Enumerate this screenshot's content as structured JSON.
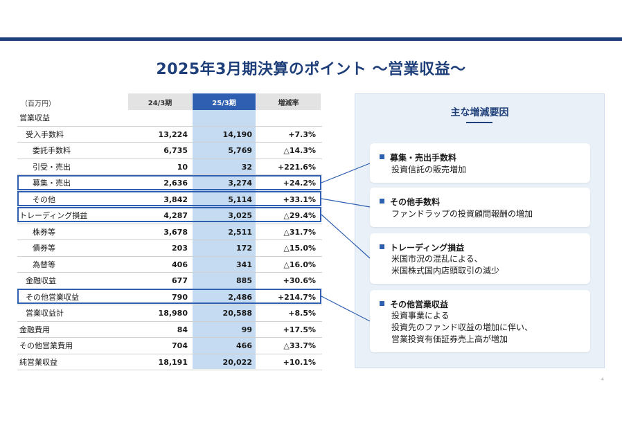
{
  "title": "2025年3月期決算のポイント ～営業収益～",
  "unit": "（百万円）",
  "columns": [
    "24/3期",
    "25/3期",
    "増減率"
  ],
  "rows": [
    {
      "label": "営業収益",
      "v1": "",
      "v2": "",
      "v3": ""
    },
    {
      "label": "受入手数料",
      "v1": "13,224",
      "v2": "14,190",
      "v3": "+7.3%"
    },
    {
      "label": "委託手数料",
      "v1": "6,735",
      "v2": "5,769",
      "v3": "△14.3%"
    },
    {
      "label": "引受・売出",
      "v1": "10",
      "v2": "32",
      "v3": "+221.6%"
    },
    {
      "label": "募集・売出",
      "v1": "2,636",
      "v2": "3,274",
      "v3": "+24.2%"
    },
    {
      "label": "その他",
      "v1": "3,842",
      "v2": "5,114",
      "v3": "+33.1%"
    },
    {
      "label": "トレーディング損益",
      "v1": "4,287",
      "v2": "3,025",
      "v3": "△29.4%"
    },
    {
      "label": "株券等",
      "v1": "3,678",
      "v2": "2,511",
      "v3": "△31.7%"
    },
    {
      "label": "債券等",
      "v1": "203",
      "v2": "172",
      "v3": "△15.0%"
    },
    {
      "label": "為替等",
      "v1": "406",
      "v2": "341",
      "v3": "△16.0%"
    },
    {
      "label": "金融収益",
      "v1": "677",
      "v2": "885",
      "v3": "+30.6%"
    },
    {
      "label": "その他営業収益",
      "v1": "790",
      "v2": "2,486",
      "v3": "+214.7%"
    },
    {
      "label": "営業収益計",
      "v1": "18,980",
      "v2": "20,588",
      "v3": "+8.5%"
    },
    {
      "label": "金融費用",
      "v1": "84",
      "v2": "99",
      "v3": "+17.5%"
    },
    {
      "label": "その他営業費用",
      "v1": "704",
      "v2": "466",
      "v3": "△33.7%"
    },
    {
      "label": "純営業収益",
      "v1": "18,191",
      "v2": "20,022",
      "v3": "+10.1%"
    }
  ],
  "panel": {
    "title": "主な増減要因",
    "cards": [
      {
        "title": "募集・売出手数料",
        "lines": [
          "投資信託の販売増加"
        ]
      },
      {
        "title": "その他手数料",
        "lines": [
          "ファンドラップの投資顧問報酬の増加"
        ]
      },
      {
        "title": "トレーディング損益",
        "lines": [
          "米国市況の混乱による、",
          "米国株式国内店頭取引の減少"
        ]
      },
      {
        "title": "その他営業収益",
        "lines": [
          "投資事業による",
          "投資先のファンド収益の増加に伴い、",
          "営業投資有価証券売上高が増加"
        ]
      }
    ]
  },
  "page_number": "4",
  "colors": {
    "accent": "#1f3f7a",
    "highlight_col": "#c5dbf1",
    "header_blue": "#2e5fb0"
  }
}
